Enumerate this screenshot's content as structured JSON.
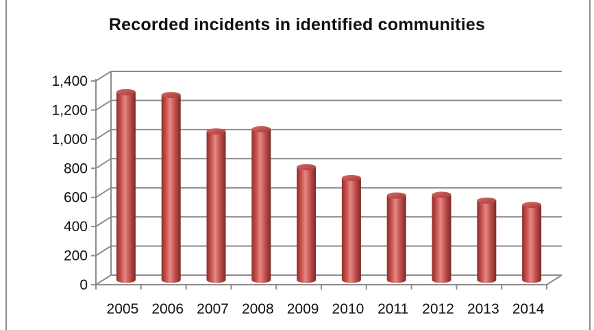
{
  "chart_data": {
    "type": "bar",
    "title": "Recorded incidents in identified communities",
    "xlabel": "",
    "ylabel": "",
    "categories": [
      "2005",
      "2006",
      "2007",
      "2008",
      "2009",
      "2010",
      "2011",
      "2012",
      "2013",
      "2014"
    ],
    "values": [
      1290,
      1270,
      1020,
      1035,
      775,
      700,
      580,
      585,
      545,
      515
    ],
    "ylim": [
      0,
      1400
    ],
    "yticks": [
      "0",
      "200",
      "400",
      "600",
      "800",
      "1,000",
      "1,200",
      "1,400"
    ],
    "grid": true,
    "legend": "none",
    "style": "3d-cylinder",
    "bar_color": "#c0504d"
  }
}
